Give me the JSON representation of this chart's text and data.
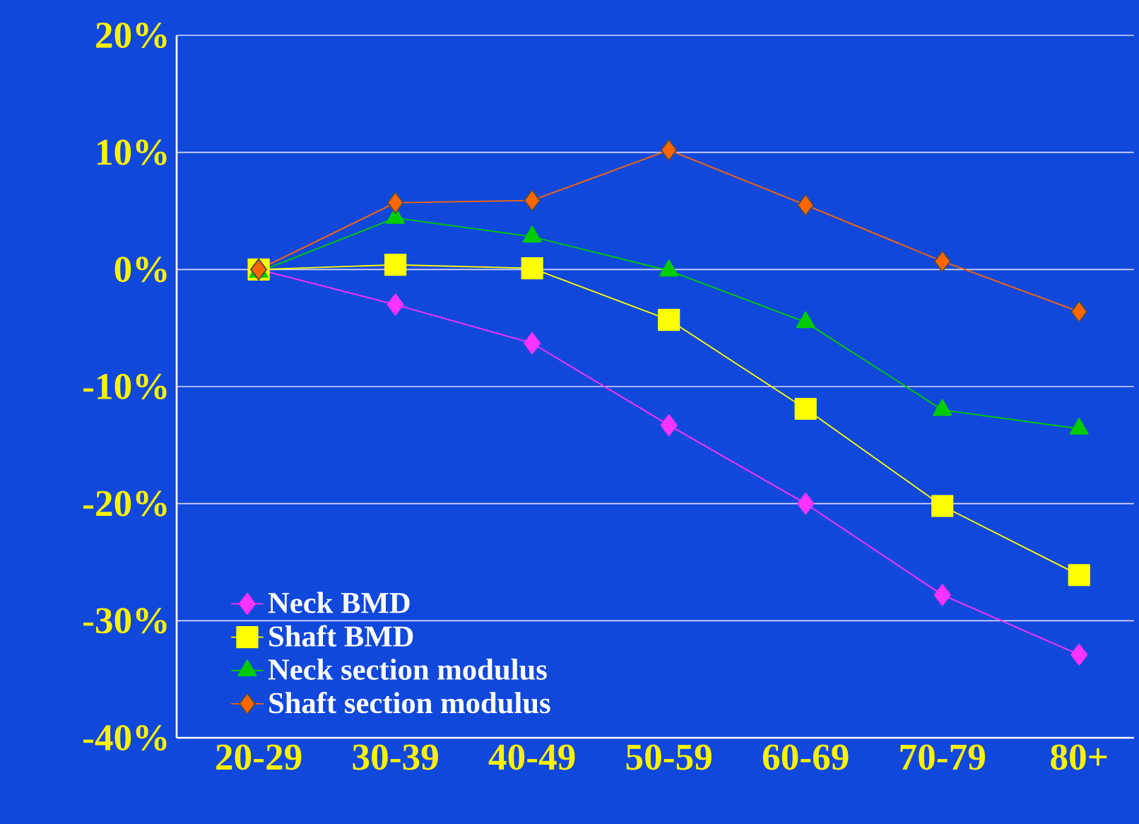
{
  "chart_data": {
    "type": "line",
    "categories": [
      "20-29",
      "30-39",
      "40-49",
      "50-59",
      "60-69",
      "70-79",
      "80+"
    ],
    "series": [
      {
        "name": "Neck BMD",
        "color": "#ff33ff",
        "marker": "diamond",
        "values": [
          0,
          -3.0,
          -6.3,
          -13.3,
          -20.0,
          -27.8,
          -32.9
        ]
      },
      {
        "name": "Shaft BMD",
        "color": "#ffff00",
        "marker": "square",
        "values": [
          0,
          0.4,
          0.1,
          -4.3,
          -11.9,
          -20.2,
          -26.1
        ]
      },
      {
        "name": "Neck section modulus",
        "color": "#00cc00",
        "marker": "triangle",
        "values": [
          -0.2,
          4.4,
          2.8,
          -0.1,
          -4.5,
          -12.0,
          -13.6
        ]
      },
      {
        "name": "Shaft section modulus",
        "color": "#ff6600",
        "marker": "diamond",
        "values": [
          0,
          5.7,
          5.9,
          10.2,
          5.5,
          0.7,
          -3.6
        ]
      }
    ],
    "ylim": [
      -40,
      20
    ],
    "yticks": [
      {
        "value": -40,
        "label": "-40%"
      },
      {
        "value": -30,
        "label": "-30%"
      },
      {
        "value": -20,
        "label": "-20%"
      },
      {
        "value": -10,
        "label": "-10%"
      },
      {
        "value": 0,
        "label": "0%"
      },
      {
        "value": 10,
        "label": "10%"
      },
      {
        "value": 20,
        "label": "20%"
      }
    ],
    "grid": "y",
    "legend": "bottom left",
    "line_style": "solid"
  }
}
